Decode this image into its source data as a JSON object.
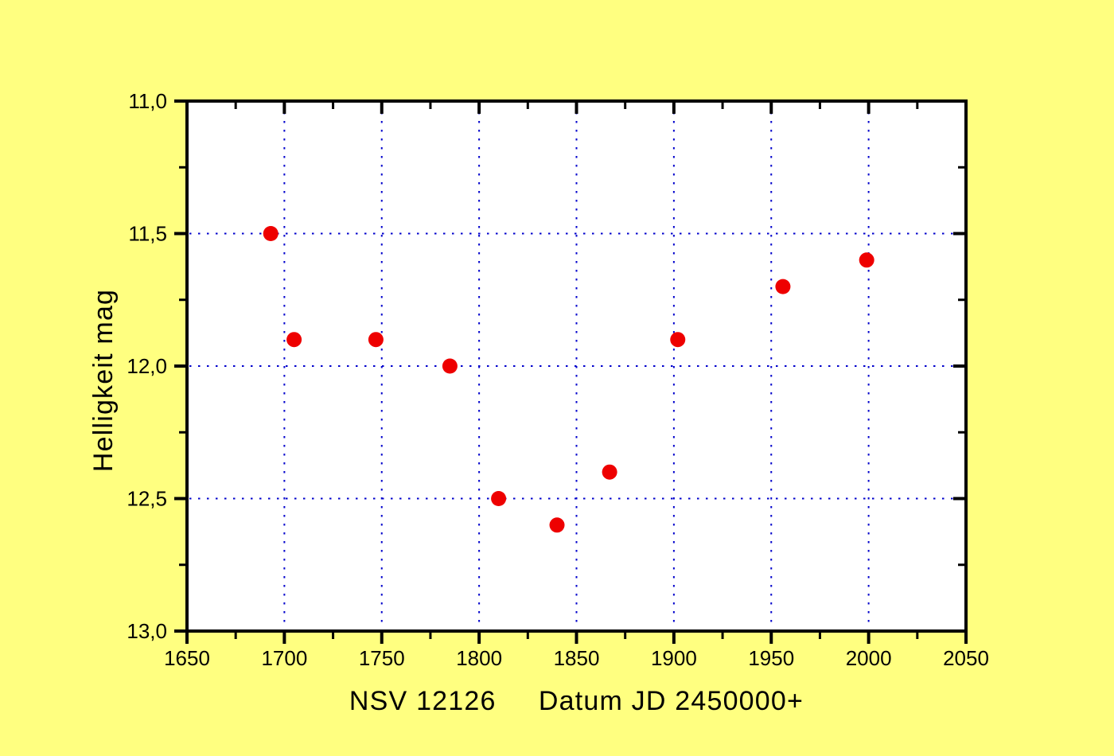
{
  "chart_data": {
    "type": "scatter",
    "title": "",
    "xlabel": "NSV 12126     Datum JD 2450000+",
    "ylabel": "Helligkeit mag",
    "x_axis_name": "Datum JD 2450000+",
    "object_name": "NSV 12126",
    "xlim": [
      1650,
      2050
    ],
    "ylim": [
      11.0,
      13.0
    ],
    "y_axis_inverted_magnitude_scale": true,
    "x_major_ticks": [
      1650,
      1700,
      1750,
      1800,
      1850,
      1900,
      1950,
      2000,
      2050
    ],
    "x_minor_ticks": [
      1675,
      1725,
      1775,
      1825,
      1875,
      1925,
      1975,
      2025
    ],
    "x_tick_labels": [
      "1650",
      "1700",
      "1750",
      "1800",
      "1850",
      "1900",
      "1950",
      "2000",
      "2050"
    ],
    "y_major_ticks": [
      11.0,
      11.5,
      12.0,
      12.5,
      13.0
    ],
    "y_minor_ticks": [
      11.25,
      11.75,
      12.25,
      12.75
    ],
    "y_tick_labels": [
      "11,0",
      "11,5",
      "12,0",
      "12,5",
      "13,0"
    ],
    "grid": "dotted, at major ticks only, not on frame edges",
    "grid_x_values": [
      1700,
      1750,
      1800,
      1850,
      1900,
      1950,
      2000
    ],
    "grid_y_values": [
      11.5,
      12.0,
      12.5
    ],
    "legend": "none",
    "series": [
      {
        "name": "NSV 12126",
        "marker": "filled-circle",
        "points": [
          [
            1693,
            11.5
          ],
          [
            1705,
            11.9
          ],
          [
            1747,
            11.9
          ],
          [
            1785,
            12.0
          ],
          [
            1810,
            12.5
          ],
          [
            1840,
            12.6
          ],
          [
            1867,
            12.4
          ],
          [
            1902,
            11.9
          ],
          [
            1956,
            11.7
          ],
          [
            1999,
            11.6
          ]
        ]
      }
    ],
    "colors": {
      "background": "#FFFF80",
      "plot_background": "#FFFFFF",
      "axis": "#000000",
      "grid": "#0000CC",
      "marker": "#EE0000",
      "text": "#000000"
    }
  }
}
